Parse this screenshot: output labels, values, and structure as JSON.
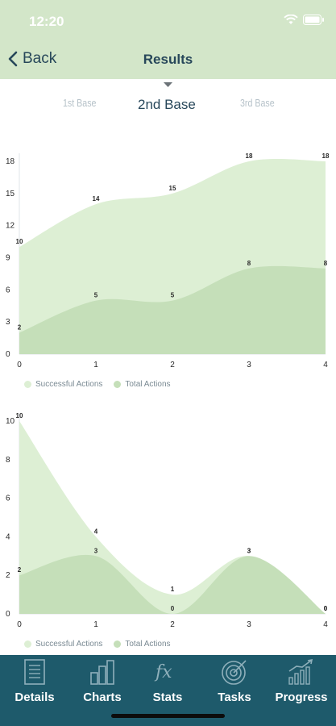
{
  "status_bar": {
    "time": "12:20"
  },
  "nav": {
    "back_label": "Back",
    "title": "Results"
  },
  "base_selector": {
    "items": [
      "1st Base",
      "2nd Base",
      "3rd Base"
    ],
    "selected": "2nd Base"
  },
  "chart_data": [
    {
      "type": "area",
      "x": [
        0,
        1,
        2,
        3,
        4
      ],
      "series": [
        {
          "name": "Successful Actions",
          "values": [
            2,
            5,
            5,
            8,
            8
          ],
          "color": "#c5dfb9"
        },
        {
          "name": "Total Actions",
          "values": [
            10,
            14,
            15,
            18,
            18
          ],
          "color": "#ddefd4"
        }
      ],
      "ylim": [
        0,
        18
      ],
      "yticks": [
        0,
        3,
        6,
        9,
        12,
        15,
        18
      ],
      "xticks": [
        0,
        1,
        2,
        3,
        4
      ],
      "grid": false,
      "legend": "bottom"
    },
    {
      "type": "area",
      "x": [
        0,
        1,
        2,
        3,
        4
      ],
      "series": [
        {
          "name": "Successful Actions",
          "values": [
            2,
            3,
            0,
            3,
            0
          ],
          "color": "#c5dfb9"
        },
        {
          "name": "Total Actions",
          "values": [
            10,
            4,
            1,
            3,
            0
          ],
          "color": "#ddefd4"
        }
      ],
      "ylim": [
        0,
        10
      ],
      "yticks": [
        0,
        2,
        4,
        6,
        8,
        10
      ],
      "xticks": [
        0,
        1,
        2,
        3,
        4
      ],
      "grid": false,
      "legend": "bottom"
    }
  ],
  "legend": {
    "successful": "Successful Actions",
    "total": "Total Actions"
  },
  "tabbar": {
    "items": [
      {
        "label": "Details",
        "icon": "document-icon"
      },
      {
        "label": "Charts",
        "icon": "bar-chart-icon"
      },
      {
        "label": "Stats",
        "icon": "function-icon"
      },
      {
        "label": "Tasks",
        "icon": "target-icon"
      },
      {
        "label": "Progress",
        "icon": "progress-chart-icon"
      }
    ],
    "colors": {
      "background": "#1e5a6b",
      "icon": "#8fb0bb"
    }
  }
}
